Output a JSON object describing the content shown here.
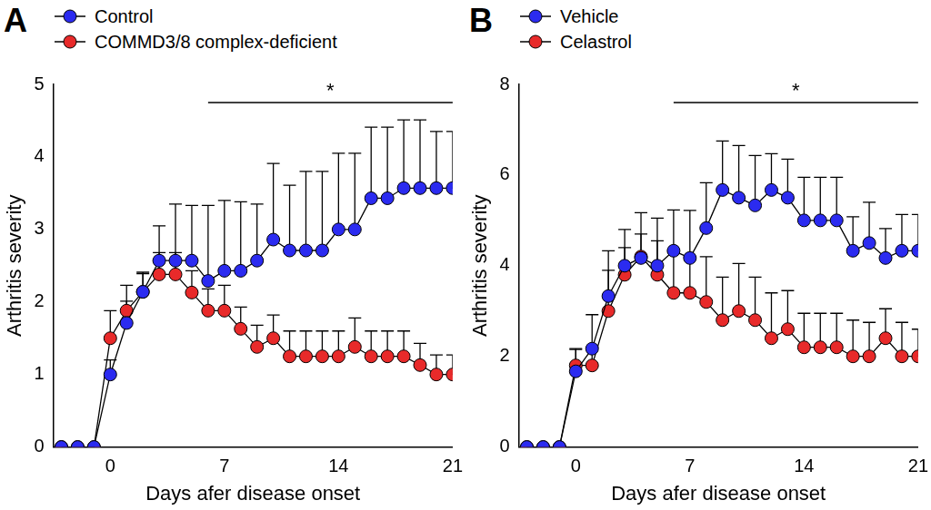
{
  "chart_data": [
    {
      "type": "line",
      "panel_label": "A",
      "xlabel": "Days afer disease onset",
      "ylabel": "Arthritis severity",
      "x": [
        -3,
        -2,
        -1,
        0,
        1,
        2,
        3,
        4,
        5,
        6,
        7,
        8,
        9,
        10,
        11,
        12,
        13,
        14,
        15,
        16,
        17,
        18,
        19,
        20,
        21
      ],
      "series": [
        {
          "name": "Control",
          "color": "#2b2bf0",
          "values": [
            0,
            0,
            0,
            1.0,
            1.71,
            2.14,
            2.57,
            2.57,
            2.57,
            2.29,
            2.43,
            2.43,
            2.57,
            2.86,
            2.71,
            2.71,
            2.71,
            3.0,
            3.0,
            3.43,
            3.43,
            3.57,
            3.57,
            3.57,
            3.57
          ],
          "errors": [
            0,
            0,
            0,
            0.2,
            0.3,
            0.25,
            0.48,
            0.78,
            0.76,
            1.04,
            0.97,
            0.95,
            0.78,
            1.05,
            0.9,
            1.09,
            1.09,
            1.05,
            1.05,
            0.98,
            0.98,
            0.94,
            0.94,
            0.78,
            0.78
          ]
        },
        {
          "name": "COMMD3/8 complex-deficient",
          "color": "#e82a2a",
          "values": [
            0,
            0,
            0,
            1.5,
            1.88,
            2.14,
            2.38,
            2.38,
            2.13,
            1.88,
            1.88,
            1.63,
            1.38,
            1.5,
            1.25,
            1.25,
            1.25,
            1.25,
            1.38,
            1.25,
            1.25,
            1.25,
            1.13,
            1.0,
            1.0
          ],
          "errors": [
            0,
            0,
            0,
            0.38,
            0.35,
            0.27,
            0.3,
            0.3,
            0.3,
            0.3,
            0.35,
            0.3,
            0.3,
            0.32,
            0.35,
            0.35,
            0.35,
            0.35,
            0.4,
            0.35,
            0.35,
            0.35,
            0.3,
            0.27,
            0.27
          ]
        }
      ],
      "xlim": [
        -3.5,
        21
      ],
      "xticks": [
        0,
        7,
        14,
        21
      ],
      "ylim": [
        0,
        5
      ],
      "yticks": [
        0,
        1,
        2,
        3,
        4,
        5
      ],
      "significance": {
        "x": [
          6,
          21
        ],
        "y": 4.75,
        "label": "*"
      },
      "grid": false,
      "legend": "top left",
      "marker": "circle"
    },
    {
      "type": "line",
      "panel_label": "B",
      "xlabel": "Days afer disease onset",
      "ylabel": "Arthritis severity",
      "x": [
        -3,
        -2,
        -1,
        0,
        1,
        2,
        3,
        4,
        5,
        6,
        7,
        8,
        9,
        10,
        11,
        12,
        13,
        14,
        15,
        16,
        17,
        18,
        19,
        20,
        21
      ],
      "series": [
        {
          "name": "Vehicle",
          "color": "#2b2bf0",
          "values": [
            0,
            0,
            0,
            1.67,
            2.17,
            3.33,
            4.0,
            4.17,
            4.0,
            4.33,
            4.17,
            4.83,
            5.67,
            5.5,
            5.33,
            5.67,
            5.5,
            5.0,
            5.0,
            5.0,
            4.33,
            4.5,
            4.17,
            4.33,
            4.33
          ],
          "errors": [
            0,
            0,
            0,
            0.5,
            0.75,
            1.0,
            0.8,
            1.0,
            1.05,
            0.9,
            1.05,
            1.0,
            1.08,
            1.15,
            1.1,
            0.8,
            0.85,
            0.95,
            0.95,
            0.95,
            0.75,
            0.9,
            0.65,
            0.8,
            0.8
          ]
        },
        {
          "name": "Celastrol",
          "color": "#e82a2a",
          "values": [
            0,
            0,
            0,
            1.8,
            1.8,
            3.0,
            3.8,
            4.2,
            3.8,
            3.4,
            3.4,
            3.2,
            2.8,
            3.0,
            2.8,
            2.4,
            2.6,
            2.2,
            2.2,
            2.2,
            2.0,
            2.0,
            2.4,
            2.0,
            2.0
          ],
          "errors": [
            0,
            0,
            0,
            0.35,
            0.4,
            0.9,
            0.6,
            0.5,
            0.75,
            0.9,
            0.8,
            1.0,
            0.95,
            1.05,
            0.95,
            1.0,
            0.85,
            0.75,
            0.75,
            0.75,
            0.8,
            0.75,
            0.65,
            0.75,
            0.6
          ]
        }
      ],
      "xlim": [
        -3.5,
        21
      ],
      "xticks": [
        0,
        7,
        14,
        21
      ],
      "ylim": [
        0,
        8
      ],
      "yticks": [
        0,
        2,
        4,
        6,
        8
      ],
      "significance": {
        "x": [
          6,
          21
        ],
        "y": 7.6,
        "label": "*"
      },
      "grid": false,
      "legend": "top left",
      "marker": "circle"
    }
  ]
}
